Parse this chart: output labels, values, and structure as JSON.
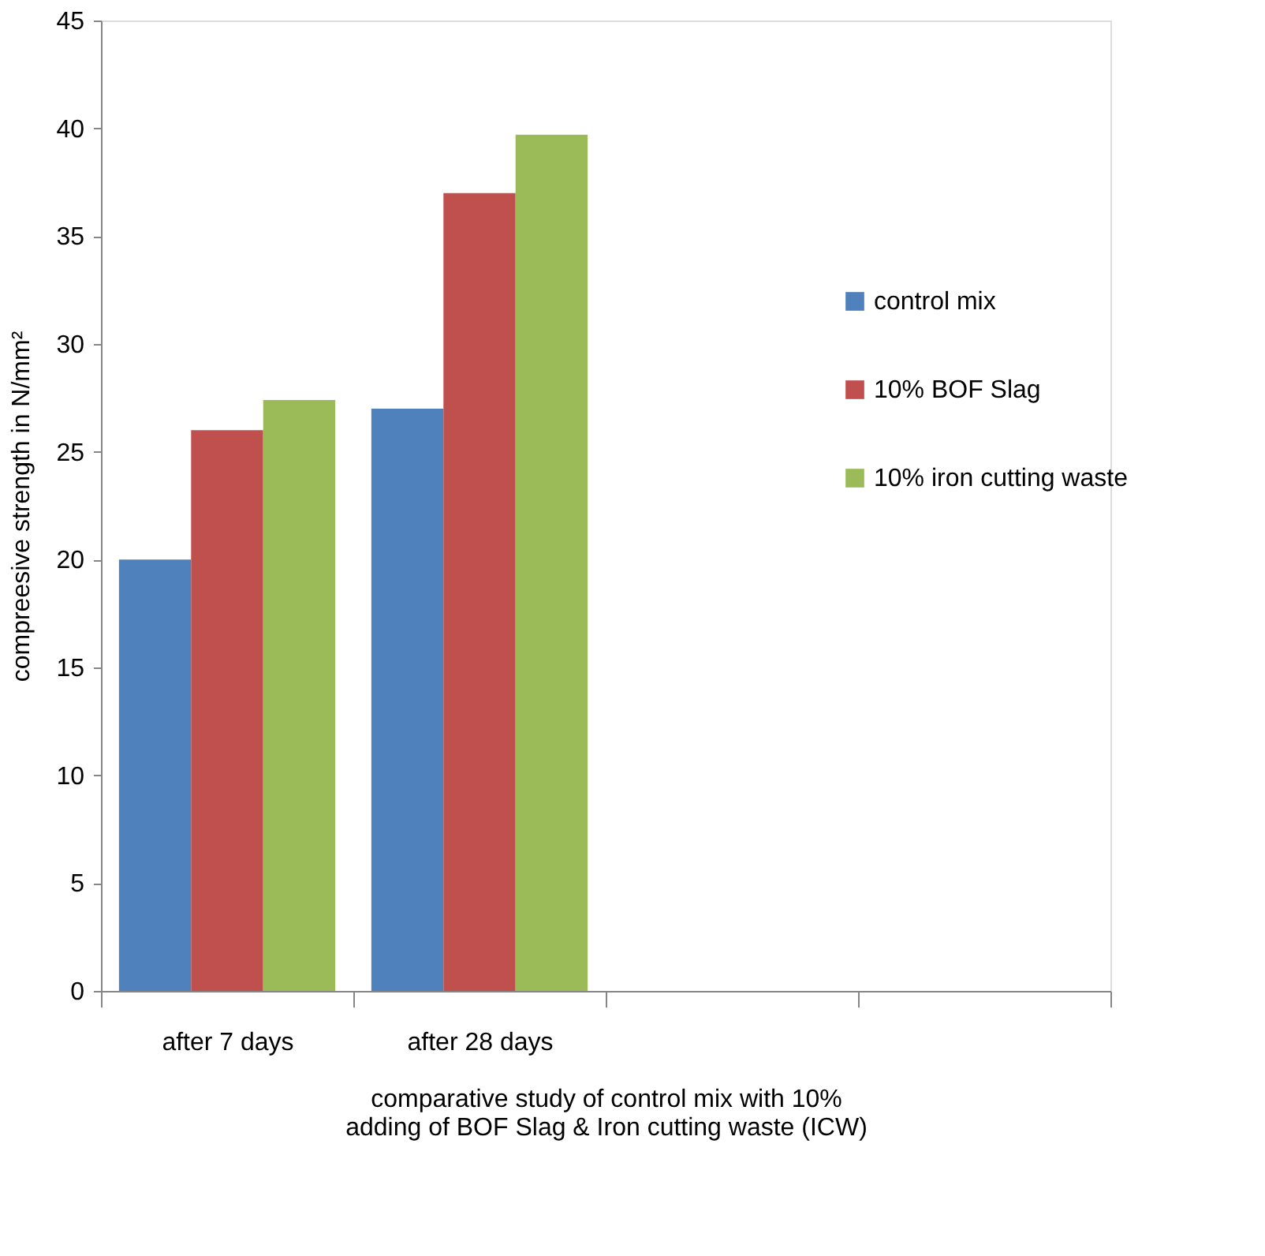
{
  "chart_data": {
    "type": "bar",
    "xlabel": "comparative study of control mix with 10% adding of BOF Slag &  Iron cutting waste (ICW)",
    "ylabel": "compreesive strength in N/mm²",
    "categories": [
      "after 7 days",
      "after 28 days",
      null,
      null
    ],
    "series": [
      {
        "name": "control mix",
        "color": "#4f81bd",
        "values": [
          20.0,
          27.0,
          null,
          null
        ]
      },
      {
        "name": "10% BOF Slag",
        "color": "#c0504d",
        "values": [
          26.0,
          37.0,
          null,
          null
        ]
      },
      {
        "name": "10% iron cutting waste",
        "color": "#9bbb59",
        "values": [
          27.4,
          39.7,
          null,
          null
        ]
      }
    ],
    "ylim": [
      0,
      45
    ],
    "yticks": [
      0,
      5,
      10,
      15,
      20,
      25,
      30,
      35,
      40,
      45
    ],
    "grid": false,
    "legend": "right"
  }
}
